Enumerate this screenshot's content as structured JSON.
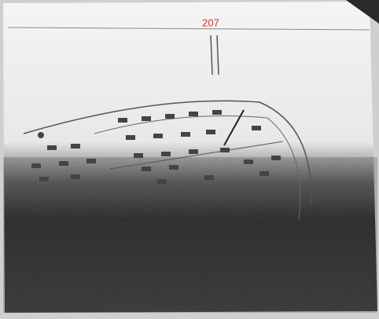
{
  "header": {
    "page_number": "207"
  }
}
